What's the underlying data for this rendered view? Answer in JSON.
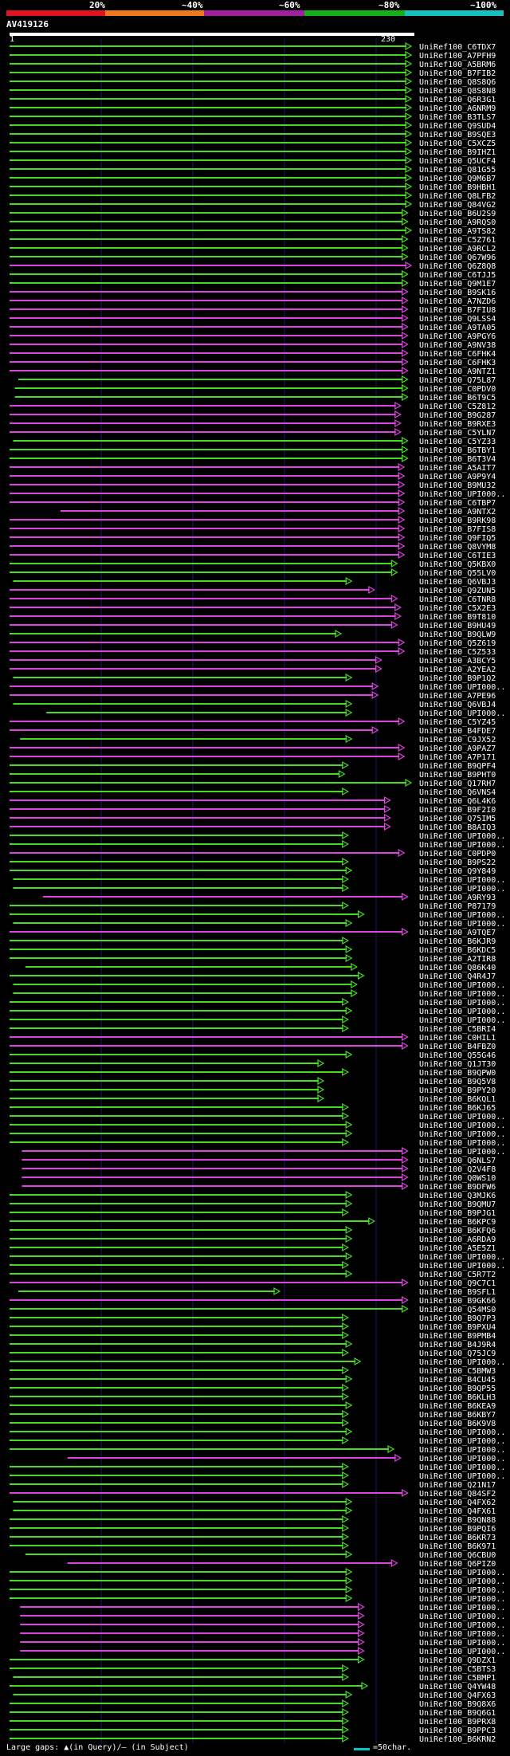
{
  "scale": {
    "labels": [
      "20%",
      "~40%",
      "~60%",
      "~80%",
      "~100%"
    ],
    "colors": [
      "#e0141e",
      "#ee7a1a",
      "#a020a0",
      "#18b018",
      "#18c0c0"
    ]
  },
  "query": {
    "title": "AV419126",
    "start": "1",
    "end": "230"
  },
  "footer": {
    "gaps": "Large gaps: ▲(in Query)/– (in Subject)",
    "legend": "=50char."
  },
  "colors": {
    "green": "#44dd22",
    "magenta": "#dd44dd",
    "grid": "#1a1a6e"
  },
  "hits": [
    {
      "id": "UniRef100_C6TDX7",
      "c": "g",
      "s": 1,
      "e": 230
    },
    {
      "id": "UniRef100_A7PFH9",
      "c": "g",
      "s": 1,
      "e": 230
    },
    {
      "id": "UniRef100_A5BRM6",
      "c": "g",
      "s": 1,
      "e": 230
    },
    {
      "id": "UniRef100_B7FIB2",
      "c": "g",
      "s": 1,
      "e": 230
    },
    {
      "id": "UniRef100_Q8S8Q6",
      "c": "g",
      "s": 1,
      "e": 230
    },
    {
      "id": "UniRef100_Q8S8N8",
      "c": "g",
      "s": 1,
      "e": 230
    },
    {
      "id": "UniRef100_Q6R3G1",
      "c": "g",
      "s": 1,
      "e": 230
    },
    {
      "id": "UniRef100_A6NRM9",
      "c": "g",
      "s": 1,
      "e": 230
    },
    {
      "id": "UniRef100_B3TLS7",
      "c": "g",
      "s": 1,
      "e": 230
    },
    {
      "id": "UniRef100_Q9SUD4",
      "c": "g",
      "s": 1,
      "e": 230
    },
    {
      "id": "UniRef100_B9SQE3",
      "c": "g",
      "s": 1,
      "e": 230
    },
    {
      "id": "UniRef100_C5XCZ5",
      "c": "g",
      "s": 1,
      "e": 230
    },
    {
      "id": "UniRef100_B9IHZ1",
      "c": "g",
      "s": 1,
      "e": 230
    },
    {
      "id": "UniRef100_Q5UCF4",
      "c": "g",
      "s": 1,
      "e": 230
    },
    {
      "id": "UniRef100_Q81G55",
      "c": "g",
      "s": 1,
      "e": 230
    },
    {
      "id": "UniRef100_Q9M6B7",
      "c": "g",
      "s": 1,
      "e": 230
    },
    {
      "id": "UniRef100_B9HBH1",
      "c": "g",
      "s": 1,
      "e": 230
    },
    {
      "id": "UniRef100_Q8LFB2",
      "c": "g",
      "s": 1,
      "e": 230
    },
    {
      "id": "UniRef100_Q84VG2",
      "c": "g",
      "s": 1,
      "e": 230
    },
    {
      "id": "UniRef100_B6U2S9",
      "c": "g",
      "s": 1,
      "e": 228
    },
    {
      "id": "UniRef100_A9RQS0",
      "c": "g",
      "s": 1,
      "e": 228
    },
    {
      "id": "UniRef100_A9TS82",
      "c": "g",
      "s": 1,
      "e": 230
    },
    {
      "id": "UniRef100_C5Z761",
      "c": "g",
      "s": 1,
      "e": 228
    },
    {
      "id": "UniRef100_A9RCL2",
      "c": "g",
      "s": 1,
      "e": 228
    },
    {
      "id": "UniRef100_Q67W96",
      "c": "g",
      "s": 1,
      "e": 228
    },
    {
      "id": "UniRef100_Q6Z8Q8",
      "c": "m",
      "s": 1,
      "e": 230
    },
    {
      "id": "UniRef100_C6TJJ5",
      "c": "g",
      "s": 1,
      "e": 228
    },
    {
      "id": "UniRef100_Q9M1E7",
      "c": "g",
      "s": 1,
      "e": 228
    },
    {
      "id": "UniRef100_B9SK16",
      "c": "m",
      "s": 1,
      "e": 228
    },
    {
      "id": "UniRef100_A7NZD6",
      "c": "m",
      "s": 1,
      "e": 228
    },
    {
      "id": "UniRef100_B7FIU8",
      "c": "m",
      "s": 1,
      "e": 228
    },
    {
      "id": "UniRef100_Q9LSS4",
      "c": "m",
      "s": 1,
      "e": 228
    },
    {
      "id": "UniRef100_A9TA05",
      "c": "m",
      "s": 1,
      "e": 228
    },
    {
      "id": "UniRef100_A9PGY6",
      "c": "m",
      "s": 1,
      "e": 228
    },
    {
      "id": "UniRef100_A9NV38",
      "c": "m",
      "s": 1,
      "e": 228
    },
    {
      "id": "UniRef100_C6FHK4",
      "c": "m",
      "s": 1,
      "e": 228
    },
    {
      "id": "UniRef100_C6FHK3",
      "c": "m",
      "s": 1,
      "e": 228
    },
    {
      "id": "UniRef100_A9NTZ1",
      "c": "m",
      "s": 1,
      "e": 228
    },
    {
      "id": "UniRef100_Q75L87",
      "c": "g",
      "s": 6,
      "e": 228
    },
    {
      "id": "UniRef100_C0PDV0",
      "c": "g",
      "s": 4,
      "e": 228
    },
    {
      "id": "UniRef100_B6T9C5",
      "c": "g",
      "s": 4,
      "e": 228
    },
    {
      "id": "UniRef100_C5Z812",
      "c": "m",
      "s": 1,
      "e": 224
    },
    {
      "id": "UniRef100_B9G287",
      "c": "m",
      "s": 1,
      "e": 224
    },
    {
      "id": "UniRef100_B9RXE3",
      "c": "m",
      "s": 1,
      "e": 224
    },
    {
      "id": "UniRef100_C5YLN7",
      "c": "m",
      "s": 1,
      "e": 224
    },
    {
      "id": "UniRef100_C5YZ33",
      "c": "g",
      "s": 3,
      "e": 228
    },
    {
      "id": "UniRef100_B6TBY1",
      "c": "g",
      "s": 1,
      "e": 228
    },
    {
      "id": "UniRef100_B6T3V4",
      "c": "g",
      "s": 1,
      "e": 228
    },
    {
      "id": "UniRef100_A5AIT7",
      "c": "m",
      "s": 1,
      "e": 226
    },
    {
      "id": "UniRef100_A9P9Y4",
      "c": "m",
      "s": 1,
      "e": 226
    },
    {
      "id": "UniRef100_B9MU32",
      "c": "m",
      "s": 1,
      "e": 226
    },
    {
      "id": "UniRef100_UPI000..",
      "c": "m",
      "s": 1,
      "e": 226
    },
    {
      "id": "UniRef100_C6TBP7",
      "c": "m",
      "s": 1,
      "e": 226
    },
    {
      "id": "UniRef100_A9NTX2",
      "c": "m",
      "s": 30,
      "e": 226
    },
    {
      "id": "UniRef100_B9RK98",
      "c": "m",
      "s": 1,
      "e": 226
    },
    {
      "id": "UniRef100_B7FIS8",
      "c": "m",
      "s": 1,
      "e": 226
    },
    {
      "id": "UniRef100_Q9FIQ5",
      "c": "m",
      "s": 1,
      "e": 226
    },
    {
      "id": "UniRef100_Q8VYM8",
      "c": "m",
      "s": 1,
      "e": 226
    },
    {
      "id": "UniRef100_C6TIE3",
      "c": "m",
      "s": 1,
      "e": 226
    },
    {
      "id": "UniRef100_Q5KBX0",
      "c": "g",
      "s": 1,
      "e": 222
    },
    {
      "id": "UniRef100_Q55LV0",
      "c": "g",
      "s": 1,
      "e": 222
    },
    {
      "id": "UniRef100_Q6VBJ3",
      "c": "g",
      "s": 3,
      "e": 196
    },
    {
      "id": "UniRef100_Q9ZUN5",
      "c": "m",
      "s": 1,
      "e": 209
    },
    {
      "id": "UniRef100_C6TNR8",
      "c": "m",
      "s": 1,
      "e": 222
    },
    {
      "id": "UniRef100_C5X2E3",
      "c": "m",
      "s": 1,
      "e": 224
    },
    {
      "id": "UniRef100_B9T810",
      "c": "m",
      "s": 1,
      "e": 224
    },
    {
      "id": "UniRef100_B9HU49",
      "c": "m",
      "s": 1,
      "e": 222
    },
    {
      "id": "UniRef100_B9QLW9",
      "c": "g",
      "s": 1,
      "e": 190
    },
    {
      "id": "UniRef100_Q5Z619",
      "c": "m",
      "s": 1,
      "e": 226
    },
    {
      "id": "UniRef100_C5Z533",
      "c": "m",
      "s": 1,
      "e": 226
    },
    {
      "id": "UniRef100_A3BCY5",
      "c": "m",
      "s": 1,
      "e": 213
    },
    {
      "id": "UniRef100_A2YEA2",
      "c": "m",
      "s": 1,
      "e": 213
    },
    {
      "id": "UniRef100_B9P1Q2",
      "c": "g",
      "s": 3,
      "e": 196
    },
    {
      "id": "UniRef100_UPI000..",
      "c": "m",
      "s": 1,
      "e": 211
    },
    {
      "id": "UniRef100_A7PE96",
      "c": "m",
      "s": 1,
      "e": 211
    },
    {
      "id": "UniRef100_Q6VBJ4",
      "c": "g",
      "s": 3,
      "e": 196
    },
    {
      "id": "UniRef100_UPI000..",
      "c": "g",
      "s": 22,
      "e": 196
    },
    {
      "id": "UniRef100_C5YZ45",
      "c": "m",
      "s": 1,
      "e": 226
    },
    {
      "id": "UniRef100_B4FDE7",
      "c": "m",
      "s": 1,
      "e": 211
    },
    {
      "id": "UniRef100_C9JX52",
      "c": "g",
      "s": 7,
      "e": 196
    },
    {
      "id": "UniRef100_A9PAZ7",
      "c": "m",
      "s": 1,
      "e": 226
    },
    {
      "id": "UniRef100_A7P171",
      "c": "m",
      "s": 1,
      "e": 226
    },
    {
      "id": "UniRef100_B9QPF4",
      "c": "g",
      "s": 1,
      "e": 194
    },
    {
      "id": "UniRef100_B9PHT0",
      "c": "g",
      "s": 1,
      "e": 192
    },
    {
      "id": "UniRef100_Q17RH7",
      "c": "g",
      "s": 1,
      "e": 230
    },
    {
      "id": "UniRef100_Q6VNS4",
      "c": "g",
      "s": 1,
      "e": 194
    },
    {
      "id": "UniRef100_Q6L4K6",
      "c": "m",
      "s": 1,
      "e": 218
    },
    {
      "id": "UniRef100_B9F2I0",
      "c": "m",
      "s": 1,
      "e": 218
    },
    {
      "id": "UniRef100_Q75IM5",
      "c": "m",
      "s": 1,
      "e": 218
    },
    {
      "id": "UniRef100_B8AIQ3",
      "c": "m",
      "s": 1,
      "e": 218
    },
    {
      "id": "UniRef100_UPI000..",
      "c": "g",
      "s": 1,
      "e": 194
    },
    {
      "id": "UniRef100_UPI000..",
      "c": "g",
      "s": 1,
      "e": 194
    },
    {
      "id": "UniRef100_C0PDP0",
      "c": "m",
      "s": 1,
      "e": 226
    },
    {
      "id": "UniRef100_B9PS22",
      "c": "g",
      "s": 1,
      "e": 194
    },
    {
      "id": "UniRef100_Q9Y849",
      "c": "g",
      "s": 1,
      "e": 196
    },
    {
      "id": "UniRef100_UPI000..",
      "c": "g",
      "s": 3,
      "e": 194
    },
    {
      "id": "UniRef100_UPI000..",
      "c": "g",
      "s": 3,
      "e": 194
    },
    {
      "id": "UniRef100_A9RY93",
      "c": "m",
      "s": 20,
      "e": 228
    },
    {
      "id": "UniRef100_P87179",
      "c": "g",
      "s": 1,
      "e": 194
    },
    {
      "id": "UniRef100_UPI000..",
      "c": "g",
      "s": 1,
      "e": 203
    },
    {
      "id": "UniRef100_UPI000..",
      "c": "g",
      "s": 3,
      "e": 196
    },
    {
      "id": "UniRef100_A9TQE7",
      "c": "m",
      "s": 1,
      "e": 228
    },
    {
      "id": "UniRef100_B6KJR9",
      "c": "g",
      "s": 1,
      "e": 194
    },
    {
      "id": "UniRef100_B6KDC5",
      "c": "g",
      "s": 1,
      "e": 196
    },
    {
      "id": "UniRef100_A2TIR8",
      "c": "g",
      "s": 1,
      "e": 196
    },
    {
      "id": "UniRef100_Q86K40",
      "c": "g",
      "s": 10,
      "e": 199
    },
    {
      "id": "UniRef100_Q4R4J7",
      "c": "g",
      "s": 1,
      "e": 203
    },
    {
      "id": "UniRef100_UPI000..",
      "c": "g",
      "s": 3,
      "e": 199
    },
    {
      "id": "UniRef100_UPI000..",
      "c": "g",
      "s": 3,
      "e": 199
    },
    {
      "id": "UniRef100_UPI000..",
      "c": "g",
      "s": 1,
      "e": 194
    },
    {
      "id": "UniRef100_UPI000..",
      "c": "g",
      "s": 1,
      "e": 196
    },
    {
      "id": "UniRef100_UPI000..",
      "c": "g",
      "s": 1,
      "e": 194
    },
    {
      "id": "UniRef100_C5BRI4",
      "c": "g",
      "s": 1,
      "e": 194
    },
    {
      "id": "UniRef100_C0HIL1",
      "c": "m",
      "s": 1,
      "e": 228
    },
    {
      "id": "UniRef100_B4FBZ0",
      "c": "m",
      "s": 1,
      "e": 228
    },
    {
      "id": "UniRef100_Q55G46",
      "c": "g",
      "s": 1,
      "e": 196
    },
    {
      "id": "UniRef100_Q1JT30",
      "c": "g",
      "s": 1,
      "e": 180
    },
    {
      "id": "UniRef100_B9QPW0",
      "c": "g",
      "s": 1,
      "e": 194
    },
    {
      "id": "UniRef100_B9Q5V8",
      "c": "g",
      "s": 1,
      "e": 180
    },
    {
      "id": "UniRef100_B9PY20",
      "c": "g",
      "s": 1,
      "e": 180
    },
    {
      "id": "UniRef100_B6KQL1",
      "c": "g",
      "s": 1,
      "e": 180
    },
    {
      "id": "UniRef100_B6KJ65",
      "c": "g",
      "s": 1,
      "e": 194
    },
    {
      "id": "UniRef100_UPI000..",
      "c": "g",
      "s": 1,
      "e": 194
    },
    {
      "id": "UniRef100_UPI000..",
      "c": "g",
      "s": 1,
      "e": 196
    },
    {
      "id": "UniRef100_UPI000..",
      "c": "g",
      "s": 1,
      "e": 196
    },
    {
      "id": "UniRef100_UPI000..",
      "c": "g",
      "s": 1,
      "e": 194
    },
    {
      "id": "UniRef100_UPI000..",
      "c": "m",
      "s": 8,
      "e": 228
    },
    {
      "id": "UniRef100_Q6NLS7",
      "c": "m",
      "s": 8,
      "e": 228
    },
    {
      "id": "UniRef100_Q2V4F8",
      "c": "m",
      "s": 8,
      "e": 228
    },
    {
      "id": "UniRef100_Q0WS10",
      "c": "m",
      "s": 8,
      "e": 228
    },
    {
      "id": "UniRef100_B9DFW6",
      "c": "m",
      "s": 8,
      "e": 228
    },
    {
      "id": "UniRef100_Q3MJK6",
      "c": "g",
      "s": 1,
      "e": 196
    },
    {
      "id": "UniRef100_B9QMU7",
      "c": "g",
      "s": 1,
      "e": 196
    },
    {
      "id": "UniRef100_B9PJG1",
      "c": "g",
      "s": 1,
      "e": 194
    },
    {
      "id": "UniRef100_B6KPC9",
      "c": "g",
      "s": 1,
      "e": 209
    },
    {
      "id": "UniRef100_B6KFQ6",
      "c": "g",
      "s": 1,
      "e": 196
    },
    {
      "id": "UniRef100_A6RDA9",
      "c": "g",
      "s": 1,
      "e": 196
    },
    {
      "id": "UniRef100_A5E5Z1",
      "c": "g",
      "s": 1,
      "e": 194
    },
    {
      "id": "UniRef100_UPI000..",
      "c": "g",
      "s": 1,
      "e": 196
    },
    {
      "id": "UniRef100_UPI000..",
      "c": "g",
      "s": 1,
      "e": 194
    },
    {
      "id": "UniRef100_C5R7T2",
      "c": "g",
      "s": 1,
      "e": 196
    },
    {
      "id": "UniRef100_Q9C7C1",
      "c": "m",
      "s": 1,
      "e": 228
    },
    {
      "id": "UniRef100_B9SFL1",
      "c": "g",
      "s": 6,
      "e": 155
    },
    {
      "id": "UniRef100_B9GK66",
      "c": "m",
      "s": 1,
      "e": 228
    },
    {
      "id": "UniRef100_Q54MS0",
      "c": "g",
      "s": 1,
      "e": 228
    },
    {
      "id": "UniRef100_B9Q7P3",
      "c": "g",
      "s": 1,
      "e": 194
    },
    {
      "id": "UniRef100_B9PXU4",
      "c": "g",
      "s": 1,
      "e": 194
    },
    {
      "id": "UniRef100_B9PMB4",
      "c": "g",
      "s": 1,
      "e": 194
    },
    {
      "id": "UniRef100_B4J9R4",
      "c": "g",
      "s": 1,
      "e": 196
    },
    {
      "id": "UniRef100_Q75JC9",
      "c": "g",
      "s": 1,
      "e": 194
    },
    {
      "id": "UniRef100_UPI000..",
      "c": "g",
      "s": 1,
      "e": 201
    },
    {
      "id": "UniRef100_C5BMW3",
      "c": "g",
      "s": 1,
      "e": 194
    },
    {
      "id": "UniRef100_B4CU45",
      "c": "g",
      "s": 1,
      "e": 196
    },
    {
      "id": "UniRef100_B9QP55",
      "c": "g",
      "s": 1,
      "e": 194
    },
    {
      "id": "UniRef100_B6KLH3",
      "c": "g",
      "s": 1,
      "e": 194
    },
    {
      "id": "UniRef100_B6KEA9",
      "c": "g",
      "s": 1,
      "e": 196
    },
    {
      "id": "UniRef100_B6KBY7",
      "c": "g",
      "s": 1,
      "e": 194
    },
    {
      "id": "UniRef100_B6K9V8",
      "c": "g",
      "s": 1,
      "e": 194
    },
    {
      "id": "UniRef100_UPI000..",
      "c": "g",
      "s": 1,
      "e": 196
    },
    {
      "id": "UniRef100_UPI000..",
      "c": "g",
      "s": 1,
      "e": 194
    },
    {
      "id": "UniRef100_UPI000..",
      "c": "g",
      "s": 1,
      "e": 220
    },
    {
      "id": "UniRef100_UPI000..",
      "c": "m",
      "s": 34,
      "e": 224
    },
    {
      "id": "UniRef100_UPI000..",
      "c": "g",
      "s": 1,
      "e": 194
    },
    {
      "id": "UniRef100_UPI000..",
      "c": "g",
      "s": 1,
      "e": 194
    },
    {
      "id": "UniRef100_Q21N17",
      "c": "g",
      "s": 1,
      "e": 194
    },
    {
      "id": "UniRef100_Q84SF2",
      "c": "m",
      "s": 1,
      "e": 228
    },
    {
      "id": "UniRef100_Q4FX62",
      "c": "g",
      "s": 3,
      "e": 196
    },
    {
      "id": "UniRef100_Q4FX61",
      "c": "g",
      "s": 3,
      "e": 196
    },
    {
      "id": "UniRef100_B9QN88",
      "c": "g",
      "s": 1,
      "e": 194
    },
    {
      "id": "UniRef100_B9PQI6",
      "c": "g",
      "s": 1,
      "e": 194
    },
    {
      "id": "UniRef100_B6KR73",
      "c": "g",
      "s": 1,
      "e": 194
    },
    {
      "id": "UniRef100_B6K971",
      "c": "g",
      "s": 1,
      "e": 194
    },
    {
      "id": "UniRef100_Q6CBU0",
      "c": "g",
      "s": 10,
      "e": 196
    },
    {
      "id": "UniRef100_Q6PIZ0",
      "c": "m",
      "s": 34,
      "e": 222
    },
    {
      "id": "UniRef100_UPI000..",
      "c": "g",
      "s": 1,
      "e": 196
    },
    {
      "id": "UniRef100_UPI000..",
      "c": "g",
      "s": 1,
      "e": 196
    },
    {
      "id": "UniRef100_UPI000..",
      "c": "g",
      "s": 1,
      "e": 196
    },
    {
      "id": "UniRef100_UPI000..",
      "c": "g",
      "s": 1,
      "e": 196
    },
    {
      "id": "UniRef100_UPI000..",
      "c": "m",
      "s": 7,
      "e": 203
    },
    {
      "id": "UniRef100_UPI000..",
      "c": "m",
      "s": 7,
      "e": 203
    },
    {
      "id": "UniRef100_UPI000..",
      "c": "m",
      "s": 7,
      "e": 203
    },
    {
      "id": "UniRef100_UPI000..",
      "c": "m",
      "s": 7,
      "e": 203
    },
    {
      "id": "UniRef100_UPI000..",
      "c": "m",
      "s": 7,
      "e": 203
    },
    {
      "id": "UniRef100_UPI000..",
      "c": "m",
      "s": 7,
      "e": 203
    },
    {
      "id": "UniRef100_Q9DZX1",
      "c": "g",
      "s": 1,
      "e": 203
    },
    {
      "id": "UniRef100_C5BTS3",
      "c": "g",
      "s": 1,
      "e": 194
    },
    {
      "id": "UniRef100_C5BMP1",
      "c": "g",
      "s": 3,
      "e": 194
    },
    {
      "id": "UniRef100_Q4YW48",
      "c": "g",
      "s": 1,
      "e": 205
    },
    {
      "id": "UniRef100_Q4FX63",
      "c": "g",
      "s": 3,
      "e": 196
    },
    {
      "id": "UniRef100_B9Q8X6",
      "c": "g",
      "s": 1,
      "e": 194
    },
    {
      "id": "UniRef100_B9Q6G1",
      "c": "g",
      "s": 1,
      "e": 194
    },
    {
      "id": "UniRef100_B9PRX8",
      "c": "g",
      "s": 1,
      "e": 194
    },
    {
      "id": "UniRef100_B9PPC3",
      "c": "g",
      "s": 1,
      "e": 194
    },
    {
      "id": "UniRef100_B6KRN2",
      "c": "g",
      "s": 1,
      "e": 194
    }
  ]
}
